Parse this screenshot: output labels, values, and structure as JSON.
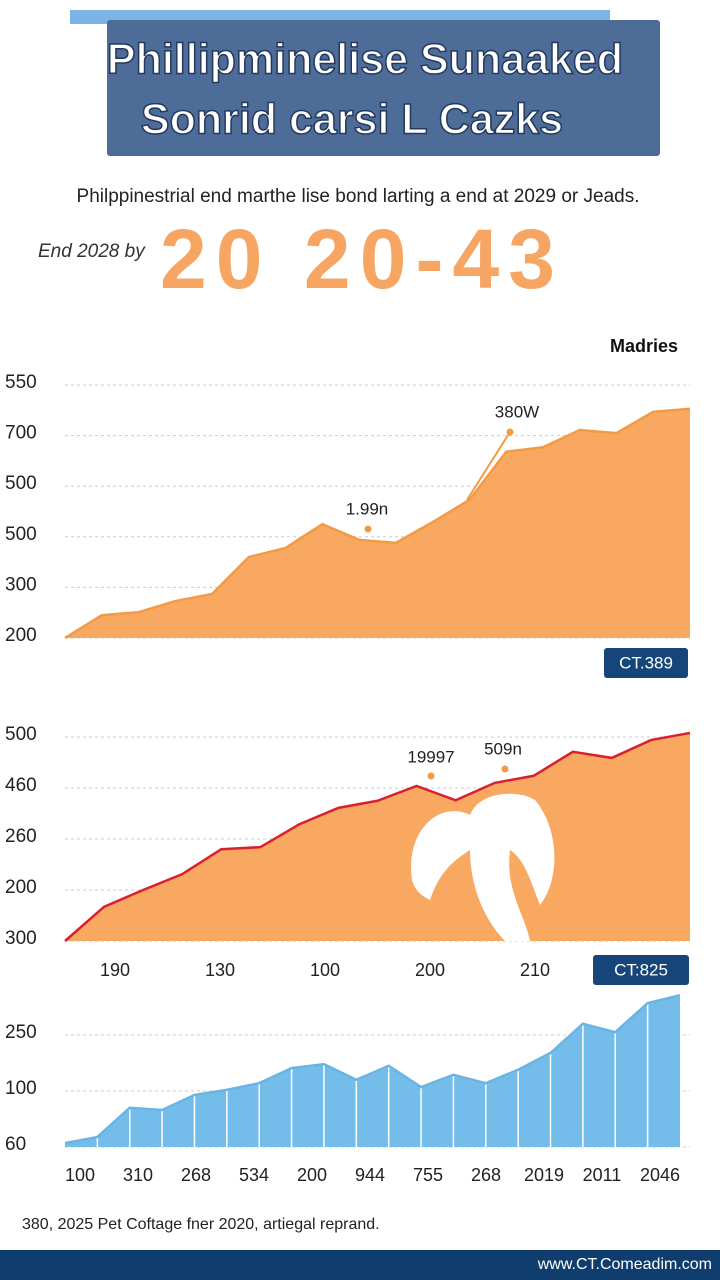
{
  "header": {
    "title_lines": [
      "Phillipminelise Sunaaked",
      "Sonrid carsi L Cazks"
    ],
    "subtitle": "Philppinestrial end marthe lise bond larting a end at 2029 or Jeads.",
    "lead": "End 2028 by",
    "highlight": "20 20-43"
  },
  "chart_data": [
    {
      "type": "area",
      "legend_label": "Madries",
      "color": "#f9a862",
      "line_color": "#f39a45",
      "values": [
        0,
        0.45,
        0.51,
        0.73,
        0.87,
        1.6,
        1.78,
        2.25,
        1.94,
        1.88,
        2.29,
        2.73,
        3.68,
        3.77,
        4.11,
        4.05,
        4.47,
        4.53
      ],
      "ylim": [
        0,
        5
      ],
      "yticks": [
        {
          "value": 0,
          "label": "200"
        },
        {
          "value": 1,
          "label": "300"
        },
        {
          "value": 2,
          "label": "500"
        },
        {
          "value": 3,
          "label": "500"
        },
        {
          "value": 4,
          "label": "700"
        },
        {
          "value": 5,
          "label": "550"
        }
      ],
      "grid": true,
      "annotations": [
        "380W",
        "1.99n"
      ],
      "badge": "CT.389"
    },
    {
      "type": "area",
      "color": "#f9a862",
      "line_color": "#d9202f",
      "values": [
        0,
        0.67,
        1.0,
        1.31,
        1.8,
        1.84,
        2.29,
        2.61,
        2.75,
        3.04,
        2.76,
        3.1,
        3.24,
        3.71,
        3.59,
        3.94,
        4.08
      ],
      "ylim": [
        0,
        4
      ],
      "yticks": [
        {
          "value": 0,
          "label": "300"
        },
        {
          "value": 1,
          "label": "200"
        },
        {
          "value": 2,
          "label": "260"
        },
        {
          "value": 3,
          "label": "460"
        },
        {
          "value": 4,
          "label": "500"
        }
      ],
      "xtick_labels": [
        "190",
        "130",
        "100",
        "200",
        "210"
      ],
      "grid": true,
      "annotations": [
        "19997",
        "509n"
      ],
      "badge": "CT:825"
    },
    {
      "type": "area",
      "color": "#74bdea",
      "line_color": "#6ab4e4",
      "values": [
        0.07,
        0.18,
        0.7,
        0.66,
        0.93,
        1.02,
        1.14,
        1.41,
        1.48,
        1.2,
        1.45,
        1.07,
        1.29,
        1.14,
        1.38,
        1.68,
        2.2,
        2.05,
        2.57,
        2.71
      ],
      "ylim": [
        0,
        2.75
      ],
      "yticks": [
        {
          "value": 0,
          "label": "60"
        },
        {
          "value": 1,
          "label": "100"
        },
        {
          "value": 2,
          "label": "250"
        }
      ],
      "xtick_labels": [
        "100",
        "310",
        "268",
        "534",
        "200",
        "944",
        "755",
        "268",
        "2019",
        "2011",
        "2046"
      ],
      "grid": true
    }
  ],
  "footer": {
    "note": "380, 2025 Pet Coftage fner 2020, artiegal reprand.",
    "url": "www.CT.Comeadim.com"
  }
}
